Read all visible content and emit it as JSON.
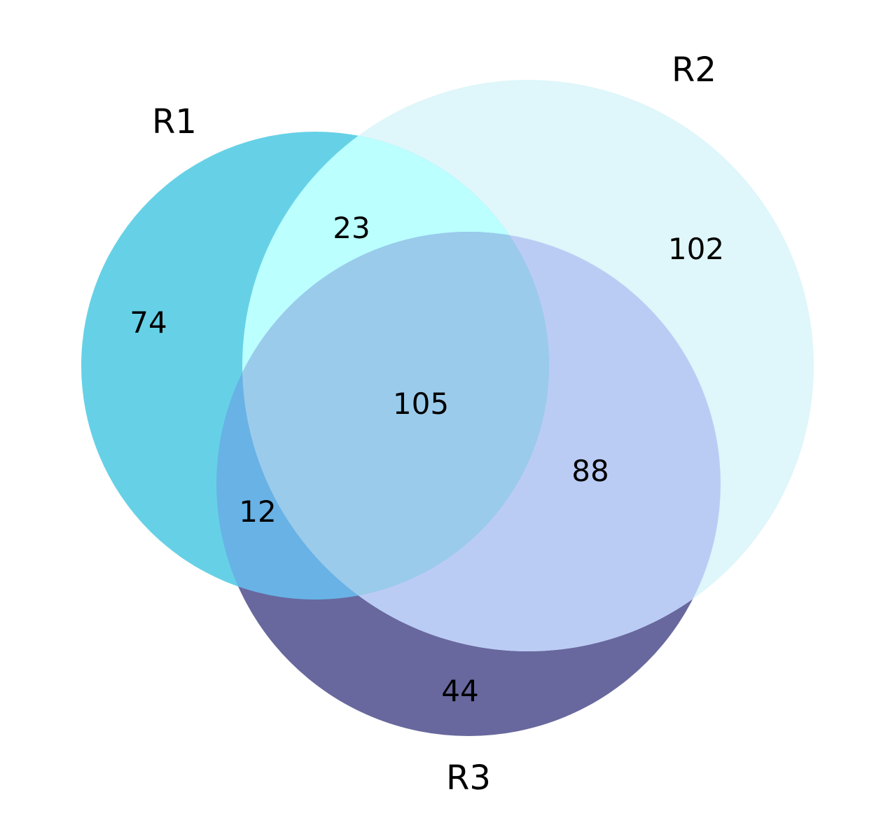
{
  "sets": [
    {
      "name": "R1",
      "color": "#00BCD4"
    },
    {
      "name": "R2",
      "color": "#B2EBF2"
    },
    {
      "name": "R3",
      "color": "#1A237E"
    }
  ],
  "regions": {
    "r1_only": "74",
    "r2_only": "102",
    "r3_only": "44",
    "r1_r2": "23",
    "r1_r3": "12",
    "r2_r3": "88",
    "r1_r2_r3": "105"
  },
  "colors": {
    "r1_only": "#66D1E6",
    "r2_only": "#DFF6FA",
    "r3_only": "#68689E",
    "r1_r2": "#BBFFFF",
    "r1_r3": "#68B2E6",
    "r2_r3": "#BBCCF4",
    "r1_r2_r3": "#9BCBEB"
  }
}
